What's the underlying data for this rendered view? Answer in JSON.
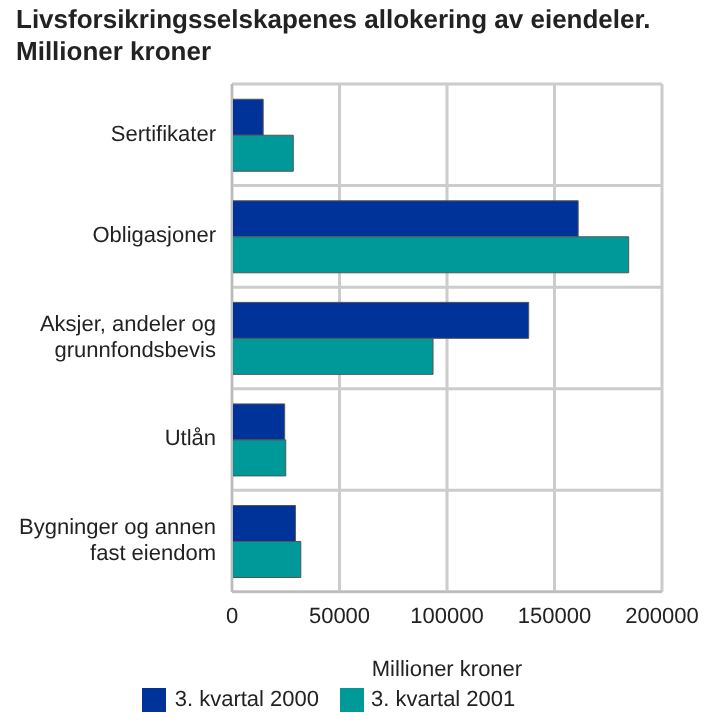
{
  "chart_data": {
    "type": "bar",
    "orientation": "horizontal",
    "title": "Livsforsikringsselskapenes allokering av eiendeler. Millioner kroner",
    "xlabel": "Millioner kroner",
    "categories": [
      "Sertifikater",
      "Obligasjoner",
      "Aksjer, andeler og grunnfondsbevis",
      "Utlån",
      "Bygninger og annen fast eiendom"
    ],
    "series": [
      {
        "name": "3. kvartal 2000",
        "color": "#003399",
        "values": [
          14500,
          161000,
          138000,
          24500,
          29500
        ]
      },
      {
        "name": "3. kvartal 2001",
        "color": "#009999",
        "values": [
          28500,
          184500,
          93500,
          25000,
          32000
        ]
      }
    ],
    "xlim": [
      0,
      200000
    ],
    "xticks": [
      0,
      50000,
      100000,
      150000,
      200000
    ],
    "grid": true,
    "legend": "bottom"
  }
}
